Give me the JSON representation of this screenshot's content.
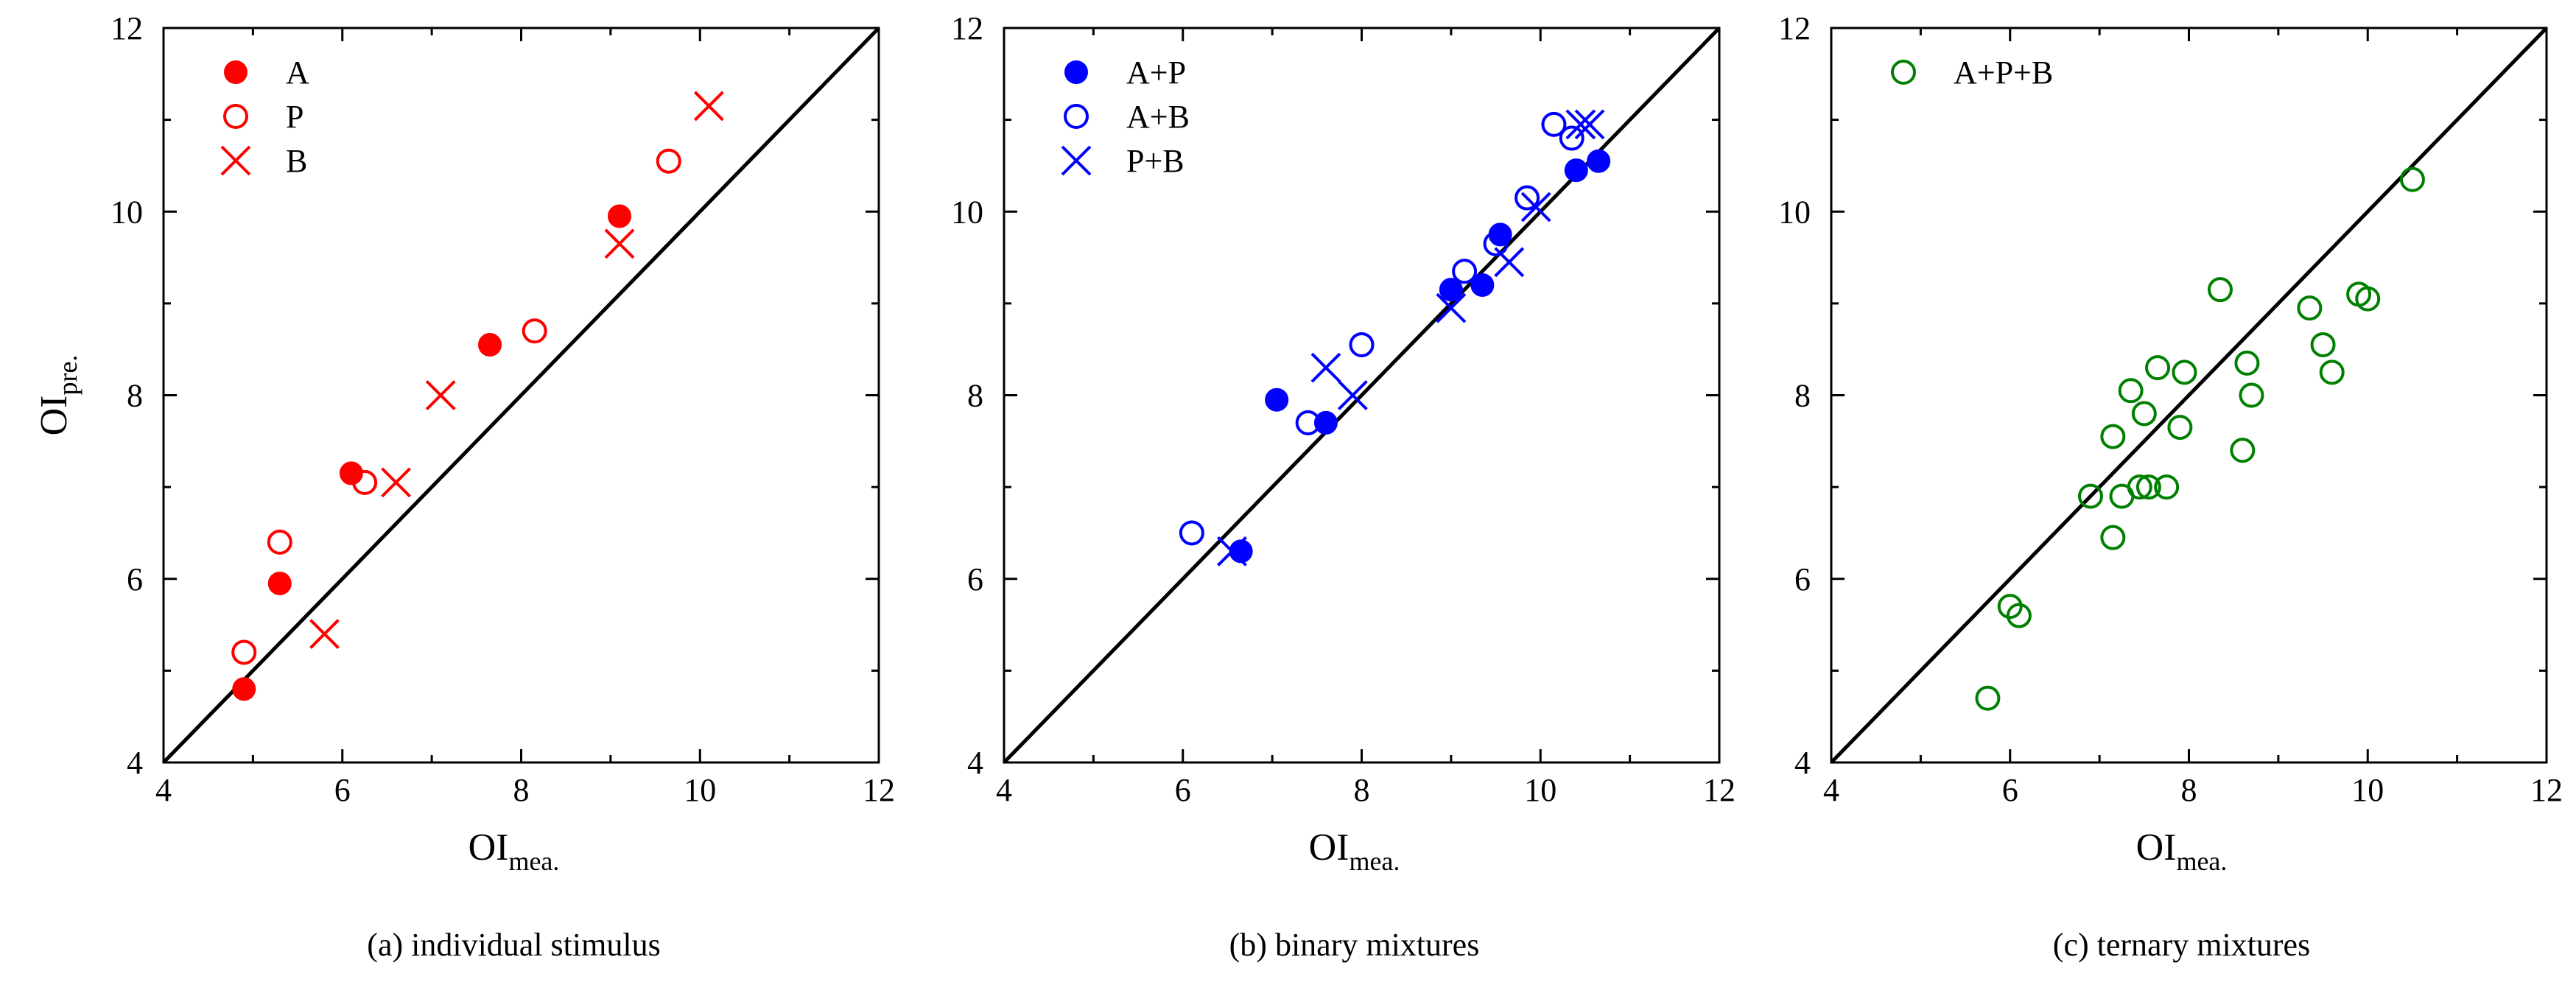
{
  "chart_data": [
    {
      "type": "scatter",
      "caption": "(a) individual stimulus",
      "xlabel": "OI",
      "xlabel_sub": "mea.",
      "ylabel": "OI",
      "ylabel_sub": "pre.",
      "xlim": [
        4,
        12
      ],
      "ylim": [
        4,
        12
      ],
      "xticks": [
        4,
        6,
        8,
        10,
        12
      ],
      "yticks": [
        4,
        6,
        8,
        10,
        12
      ],
      "reference_line": "y = x",
      "series": [
        {
          "name": "A",
          "marker": "filled-circle",
          "color": "#ff0000",
          "points": [
            [
              4.9,
              4.8
            ],
            [
              5.3,
              5.95
            ],
            [
              6.1,
              7.15
            ],
            [
              7.65,
              8.55
            ],
            [
              9.1,
              9.95
            ]
          ]
        },
        {
          "name": "P",
          "marker": "open-circle",
          "color": "#ff0000",
          "points": [
            [
              4.9,
              5.2
            ],
            [
              5.3,
              6.4
            ],
            [
              6.25,
              7.05
            ],
            [
              8.15,
              8.7
            ],
            [
              9.65,
              10.55
            ]
          ]
        },
        {
          "name": "B",
          "marker": "cross",
          "color": "#ff0000",
          "points": [
            [
              5.8,
              5.4
            ],
            [
              6.6,
              7.05
            ],
            [
              7.1,
              8.0
            ],
            [
              9.1,
              9.65
            ],
            [
              10.1,
              11.15
            ]
          ]
        }
      ]
    },
    {
      "type": "scatter",
      "caption": "(b) binary mixtures",
      "xlabel": "OI",
      "xlabel_sub": "mea.",
      "ylabel": "",
      "ylabel_sub": "",
      "xlim": [
        4,
        12
      ],
      "ylim": [
        4,
        12
      ],
      "xticks": [
        4,
        6,
        8,
        10,
        12
      ],
      "yticks": [
        4,
        6,
        8,
        10,
        12
      ],
      "reference_line": "y = x",
      "series": [
        {
          "name": "A+P",
          "marker": "filled-circle",
          "color": "#0000ff",
          "points": [
            [
              6.65,
              6.3
            ],
            [
              7.05,
              7.95
            ],
            [
              7.6,
              7.7
            ],
            [
              9.0,
              9.15
            ],
            [
              9.35,
              9.2
            ],
            [
              9.55,
              9.75
            ],
            [
              10.4,
              10.45
            ],
            [
              10.65,
              10.55
            ]
          ]
        },
        {
          "name": "A+B",
          "marker": "open-circle",
          "color": "#0000ff",
          "points": [
            [
              6.1,
              6.5
            ],
            [
              7.4,
              7.7
            ],
            [
              8.0,
              8.55
            ],
            [
              9.15,
              9.35
            ],
            [
              9.5,
              9.65
            ],
            [
              9.85,
              10.15
            ],
            [
              10.15,
              10.95
            ],
            [
              10.35,
              10.8
            ]
          ]
        },
        {
          "name": "P+B",
          "marker": "cross",
          "color": "#0000ff",
          "points": [
            [
              6.55,
              6.3
            ],
            [
              7.6,
              8.3
            ],
            [
              7.9,
              8.0
            ],
            [
              9.0,
              8.95
            ],
            [
              9.65,
              9.45
            ],
            [
              9.95,
              10.05
            ],
            [
              10.45,
              10.95
            ],
            [
              10.55,
              10.95
            ]
          ]
        }
      ]
    },
    {
      "type": "scatter",
      "caption": "(c) ternary mixtures",
      "xlabel": "OI",
      "xlabel_sub": "mea.",
      "ylabel": "",
      "ylabel_sub": "",
      "xlim": [
        4,
        12
      ],
      "ylim": [
        4,
        12
      ],
      "xticks": [
        4,
        6,
        8,
        10,
        12
      ],
      "yticks": [
        4,
        6,
        8,
        10,
        12
      ],
      "reference_line": "y = x",
      "series": [
        {
          "name": "A+P+B",
          "marker": "open-circle",
          "color": "#008000",
          "points": [
            [
              5.75,
              4.7
            ],
            [
              6.0,
              5.7
            ],
            [
              6.1,
              5.6
            ],
            [
              6.9,
              6.9
            ],
            [
              7.15,
              6.45
            ],
            [
              7.15,
              7.55
            ],
            [
              7.25,
              6.9
            ],
            [
              7.35,
              8.05
            ],
            [
              7.45,
              7.0
            ],
            [
              7.5,
              7.8
            ],
            [
              7.55,
              7.0
            ],
            [
              7.65,
              8.3
            ],
            [
              7.75,
              7.0
            ],
            [
              7.9,
              7.65
            ],
            [
              7.95,
              8.25
            ],
            [
              8.35,
              9.15
            ],
            [
              8.6,
              7.4
            ],
            [
              8.65,
              8.35
            ],
            [
              8.7,
              8.0
            ],
            [
              9.35,
              8.95
            ],
            [
              9.5,
              8.55
            ],
            [
              9.6,
              8.25
            ],
            [
              9.9,
              9.1
            ],
            [
              10.0,
              9.05
            ],
            [
              10.5,
              10.35
            ]
          ]
        }
      ]
    }
  ]
}
